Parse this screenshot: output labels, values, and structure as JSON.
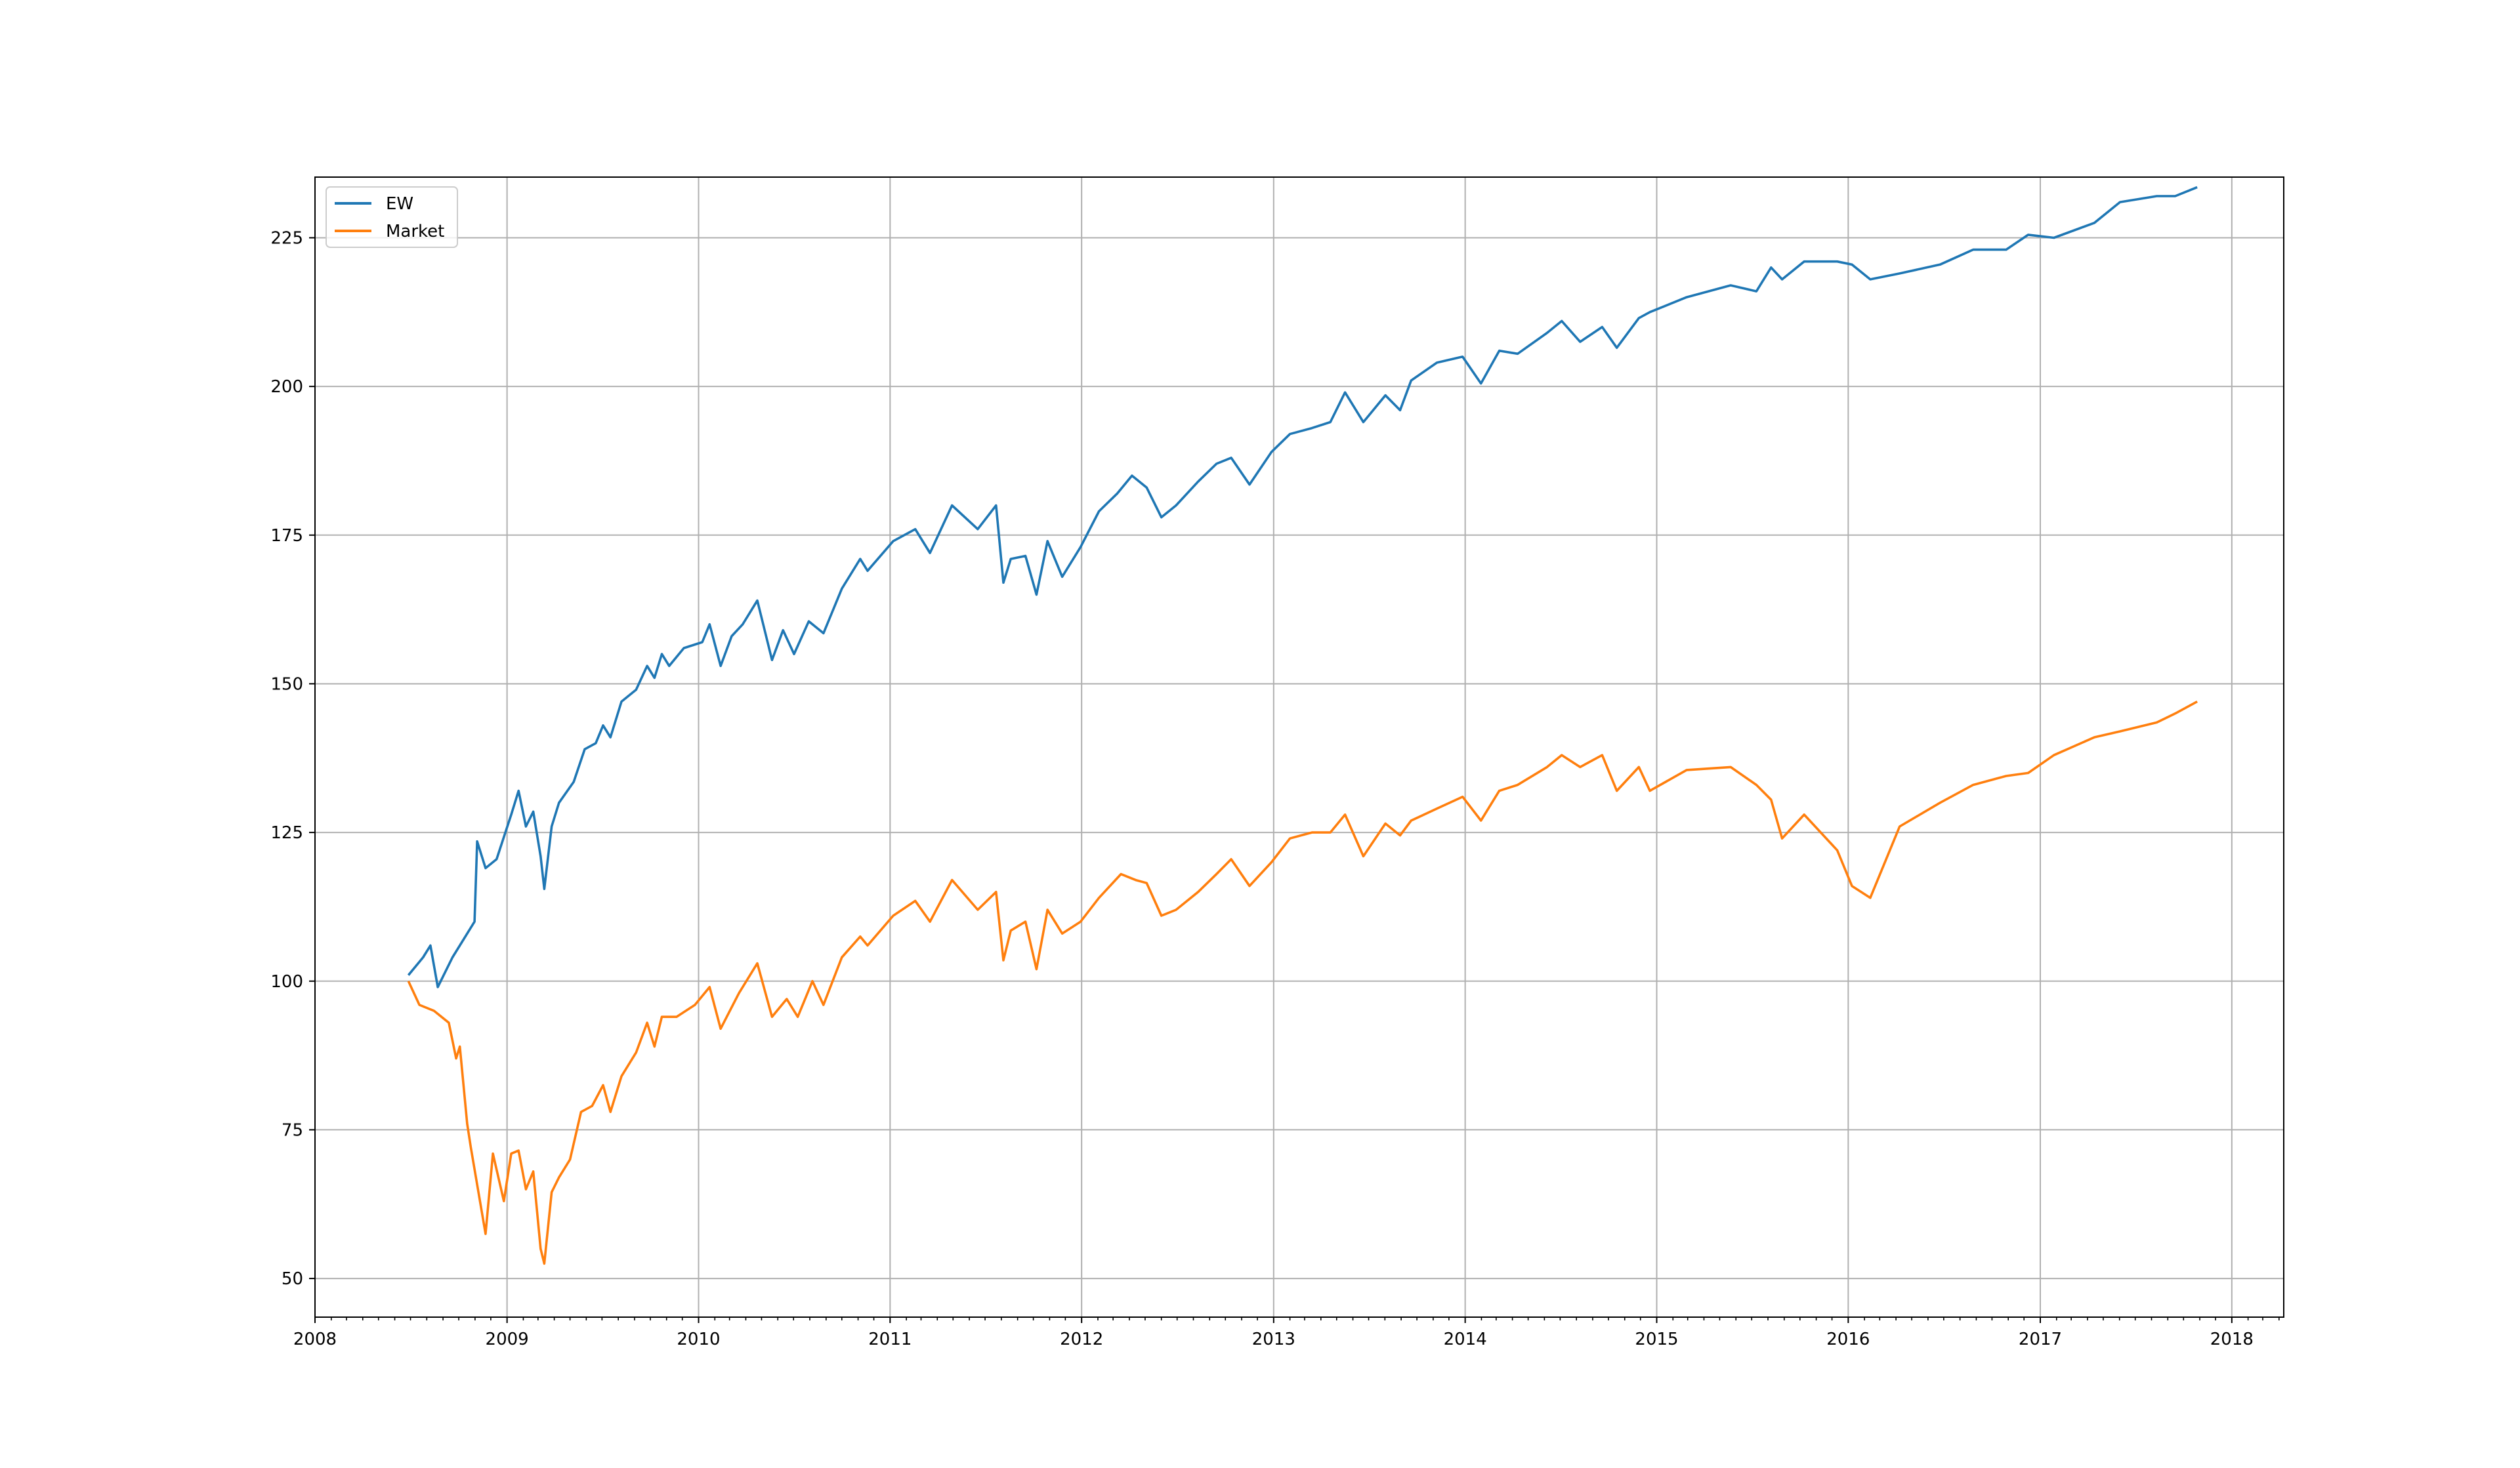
{
  "chart_data": {
    "type": "line",
    "title": "",
    "xlabel": "",
    "ylabel": "",
    "xlim": [
      "2008-01-01",
      "2018-04-10"
    ],
    "ylim": [
      43.5,
      235.2
    ],
    "grid": true,
    "legend_position": "upper-left",
    "x_tick_labels": [
      "2008",
      "2009",
      "2010",
      "2011",
      "2012",
      "2013",
      "2014",
      "2015",
      "2016",
      "2017",
      "2018"
    ],
    "y_tick_labels": [
      "50",
      "75",
      "100",
      "125",
      "150",
      "175",
      "200",
      "225"
    ],
    "series": [
      {
        "name": "EW",
        "color": "#1f77b4",
        "points": [
          [
            "2008-06-27",
            101.0
          ],
          [
            "2008-07-25",
            104.0
          ],
          [
            "2008-08-08",
            106.0
          ],
          [
            "2008-08-22",
            99.0
          ],
          [
            "2008-09-19",
            104.0
          ],
          [
            "2008-10-10",
            107.0
          ],
          [
            "2008-10-31",
            110.0
          ],
          [
            "2008-11-05",
            123.5
          ],
          [
            "2008-11-21",
            119.0
          ],
          [
            "2008-12-12",
            120.5
          ],
          [
            "2009-01-09",
            128.0
          ],
          [
            "2009-01-23",
            132.0
          ],
          [
            "2009-02-06",
            126.0
          ],
          [
            "2009-02-20",
            128.5
          ],
          [
            "2009-03-06",
            121.0
          ],
          [
            "2009-03-13",
            115.5
          ],
          [
            "2009-03-27",
            126.0
          ],
          [
            "2009-04-10",
            130.0
          ],
          [
            "2009-05-08",
            133.5
          ],
          [
            "2009-05-29",
            139.0
          ],
          [
            "2009-06-19",
            140.0
          ],
          [
            "2009-07-03",
            143.0
          ],
          [
            "2009-07-17",
            141.0
          ],
          [
            "2009-08-07",
            147.0
          ],
          [
            "2009-09-04",
            149.0
          ],
          [
            "2009-09-25",
            153.0
          ],
          [
            "2009-10-09",
            151.0
          ],
          [
            "2009-10-23",
            155.0
          ],
          [
            "2009-11-06",
            153.0
          ],
          [
            "2009-12-04",
            156.0
          ],
          [
            "2010-01-08",
            157.0
          ],
          [
            "2010-01-22",
            160.0
          ],
          [
            "2010-02-12",
            153.0
          ],
          [
            "2010-03-05",
            158.0
          ],
          [
            "2010-03-26",
            160.0
          ],
          [
            "2010-04-23",
            164.0
          ],
          [
            "2010-05-21",
            154.0
          ],
          [
            "2010-06-11",
            159.0
          ],
          [
            "2010-07-02",
            155.0
          ],
          [
            "2010-07-30",
            160.5
          ],
          [
            "2010-08-27",
            158.5
          ],
          [
            "2010-10-01",
            166.0
          ],
          [
            "2010-11-05",
            171.0
          ],
          [
            "2010-11-19",
            169.0
          ],
          [
            "2011-01-07",
            174.0
          ],
          [
            "2011-02-18",
            176.0
          ],
          [
            "2011-03-18",
            172.0
          ],
          [
            "2011-04-29",
            180.0
          ],
          [
            "2011-06-17",
            176.0
          ],
          [
            "2011-07-22",
            180.0
          ],
          [
            "2011-08-05",
            167.0
          ],
          [
            "2011-08-19",
            171.0
          ],
          [
            "2011-09-16",
            171.5
          ],
          [
            "2011-10-07",
            165.0
          ],
          [
            "2011-10-28",
            174.0
          ],
          [
            "2011-11-25",
            168.0
          ],
          [
            "2011-12-30",
            173.0
          ],
          [
            "2012-02-03",
            179.0
          ],
          [
            "2012-03-09",
            182.0
          ],
          [
            "2012-04-06",
            185.0
          ],
          [
            "2012-05-04",
            183.0
          ],
          [
            "2012-06-01",
            178.0
          ],
          [
            "2012-06-29",
            180.0
          ],
          [
            "2012-08-10",
            184.0
          ],
          [
            "2012-09-14",
            187.0
          ],
          [
            "2012-10-12",
            188.0
          ],
          [
            "2012-11-16",
            183.5
          ],
          [
            "2012-12-28",
            189.0
          ],
          [
            "2013-02-01",
            192.0
          ],
          [
            "2013-03-15",
            193.0
          ],
          [
            "2013-04-19",
            194.0
          ],
          [
            "2013-05-17",
            199.0
          ],
          [
            "2013-06-21",
            194.0
          ],
          [
            "2013-08-02",
            198.5
          ],
          [
            "2013-08-30",
            196.0
          ],
          [
            "2013-09-20",
            201.0
          ],
          [
            "2013-11-08",
            204.0
          ],
          [
            "2013-12-27",
            205.0
          ],
          [
            "2014-01-31",
            200.5
          ],
          [
            "2014-03-07",
            206.0
          ],
          [
            "2014-04-11",
            205.5
          ],
          [
            "2014-06-06",
            209.0
          ],
          [
            "2014-07-04",
            211.0
          ],
          [
            "2014-08-08",
            207.5
          ],
          [
            "2014-09-19",
            210.0
          ],
          [
            "2014-10-17",
            206.5
          ],
          [
            "2014-11-28",
            211.5
          ],
          [
            "2014-12-19",
            212.5
          ],
          [
            "2015-02-27",
            215.0
          ],
          [
            "2015-05-22",
            217.0
          ],
          [
            "2015-07-10",
            216.0
          ],
          [
            "2015-08-07",
            220.0
          ],
          [
            "2015-08-28",
            218.0
          ],
          [
            "2015-10-09",
            221.0
          ],
          [
            "2015-12-11",
            221.0
          ],
          [
            "2016-01-08",
            220.5
          ],
          [
            "2016-02-12",
            218.0
          ],
          [
            "2016-04-08",
            219.0
          ],
          [
            "2016-06-24",
            220.5
          ],
          [
            "2016-08-26",
            223.0
          ],
          [
            "2016-10-28",
            223.0
          ],
          [
            "2016-12-09",
            225.5
          ],
          [
            "2017-01-27",
            225.0
          ],
          [
            "2017-04-14",
            227.5
          ],
          [
            "2017-06-02",
            231.0
          ],
          [
            "2017-08-11",
            232.0
          ],
          [
            "2017-09-15",
            232.0
          ],
          [
            "2017-10-27",
            233.5
          ]
        ]
      },
      {
        "name": "Market",
        "color": "#ff7f0e",
        "points": [
          [
            "2008-06-27",
            100.0
          ],
          [
            "2008-07-18",
            96.0
          ],
          [
            "2008-08-15",
            95.0
          ],
          [
            "2008-09-12",
            93.0
          ],
          [
            "2008-09-26",
            87.0
          ],
          [
            "2008-10-03",
            89.0
          ],
          [
            "2008-10-17",
            76.0
          ],
          [
            "2008-10-24",
            72.0
          ],
          [
            "2008-11-21",
            57.5
          ],
          [
            "2008-12-05",
            71.0
          ],
          [
            "2008-12-26",
            63.0
          ],
          [
            "2009-01-09",
            71.0
          ],
          [
            "2009-01-23",
            71.5
          ],
          [
            "2009-02-06",
            65.0
          ],
          [
            "2009-02-20",
            68.0
          ],
          [
            "2009-03-06",
            55.0
          ],
          [
            "2009-03-13",
            52.5
          ],
          [
            "2009-03-27",
            64.5
          ],
          [
            "2009-04-10",
            67.0
          ],
          [
            "2009-05-01",
            70.0
          ],
          [
            "2009-05-22",
            78.0
          ],
          [
            "2009-06-12",
            79.0
          ],
          [
            "2009-07-03",
            82.5
          ],
          [
            "2009-07-17",
            78.0
          ],
          [
            "2009-08-07",
            84.0
          ],
          [
            "2009-09-04",
            88.0
          ],
          [
            "2009-09-25",
            93.0
          ],
          [
            "2009-10-09",
            89.0
          ],
          [
            "2009-10-23",
            94.0
          ],
          [
            "2009-11-20",
            94.0
          ],
          [
            "2009-12-25",
            96.0
          ],
          [
            "2010-01-22",
            99.0
          ],
          [
            "2010-02-12",
            92.0
          ],
          [
            "2010-03-19",
            98.0
          ],
          [
            "2010-04-23",
            103.0
          ],
          [
            "2010-05-21",
            94.0
          ],
          [
            "2010-06-18",
            97.0
          ],
          [
            "2010-07-09",
            94.0
          ],
          [
            "2010-08-06",
            100.0
          ],
          [
            "2010-08-27",
            96.0
          ],
          [
            "2010-10-01",
            104.0
          ],
          [
            "2010-11-05",
            107.5
          ],
          [
            "2010-11-19",
            106.0
          ],
          [
            "2011-01-07",
            111.0
          ],
          [
            "2011-02-18",
            113.5
          ],
          [
            "2011-03-18",
            110.0
          ],
          [
            "2011-04-29",
            117.0
          ],
          [
            "2011-06-17",
            112.0
          ],
          [
            "2011-07-22",
            115.0
          ],
          [
            "2011-08-05",
            103.5
          ],
          [
            "2011-08-19",
            108.5
          ],
          [
            "2011-09-16",
            110.0
          ],
          [
            "2011-10-07",
            102.0
          ],
          [
            "2011-10-28",
            112.0
          ],
          [
            "2011-11-25",
            108.0
          ],
          [
            "2011-12-30",
            110.0
          ],
          [
            "2012-02-03",
            114.0
          ],
          [
            "2012-03-16",
            118.0
          ],
          [
            "2012-04-13",
            117.0
          ],
          [
            "2012-05-04",
            116.5
          ],
          [
            "2012-06-01",
            111.0
          ],
          [
            "2012-06-29",
            112.0
          ],
          [
            "2012-08-10",
            115.0
          ],
          [
            "2012-09-14",
            118.0
          ],
          [
            "2012-10-12",
            120.5
          ],
          [
            "2012-11-16",
            116.0
          ],
          [
            "2012-12-28",
            120.0
          ],
          [
            "2013-02-01",
            124.0
          ],
          [
            "2013-03-15",
            125.0
          ],
          [
            "2013-04-19",
            125.0
          ],
          [
            "2013-05-17",
            128.0
          ],
          [
            "2013-06-21",
            121.0
          ],
          [
            "2013-08-02",
            126.5
          ],
          [
            "2013-08-30",
            124.5
          ],
          [
            "2013-09-20",
            127.0
          ],
          [
            "2013-11-08",
            129.0
          ],
          [
            "2013-12-27",
            131.0
          ],
          [
            "2014-01-31",
            127.0
          ],
          [
            "2014-03-07",
            132.0
          ],
          [
            "2014-04-11",
            133.0
          ],
          [
            "2014-06-06",
            136.0
          ],
          [
            "2014-07-04",
            138.0
          ],
          [
            "2014-08-08",
            136.0
          ],
          [
            "2014-09-19",
            138.0
          ],
          [
            "2014-10-17",
            132.0
          ],
          [
            "2014-11-28",
            136.0
          ],
          [
            "2014-12-19",
            132.0
          ],
          [
            "2015-02-27",
            135.5
          ],
          [
            "2015-05-22",
            136.0
          ],
          [
            "2015-07-10",
            133.0
          ],
          [
            "2015-08-07",
            130.5
          ],
          [
            "2015-08-28",
            124.0
          ],
          [
            "2015-10-09",
            128.0
          ],
          [
            "2015-12-11",
            122.0
          ],
          [
            "2016-01-08",
            116.0
          ],
          [
            "2016-02-12",
            114.0
          ],
          [
            "2016-04-08",
            126.0
          ],
          [
            "2016-06-24",
            130.0
          ],
          [
            "2016-08-26",
            133.0
          ],
          [
            "2016-10-28",
            134.5
          ],
          [
            "2016-12-09",
            135.0
          ],
          [
            "2017-01-27",
            138.0
          ],
          [
            "2017-04-14",
            141.0
          ],
          [
            "2017-06-02",
            142.0
          ],
          [
            "2017-08-11",
            143.5
          ],
          [
            "2017-09-15",
            145.0
          ],
          [
            "2017-10-27",
            147.0
          ]
        ]
      }
    ]
  }
}
